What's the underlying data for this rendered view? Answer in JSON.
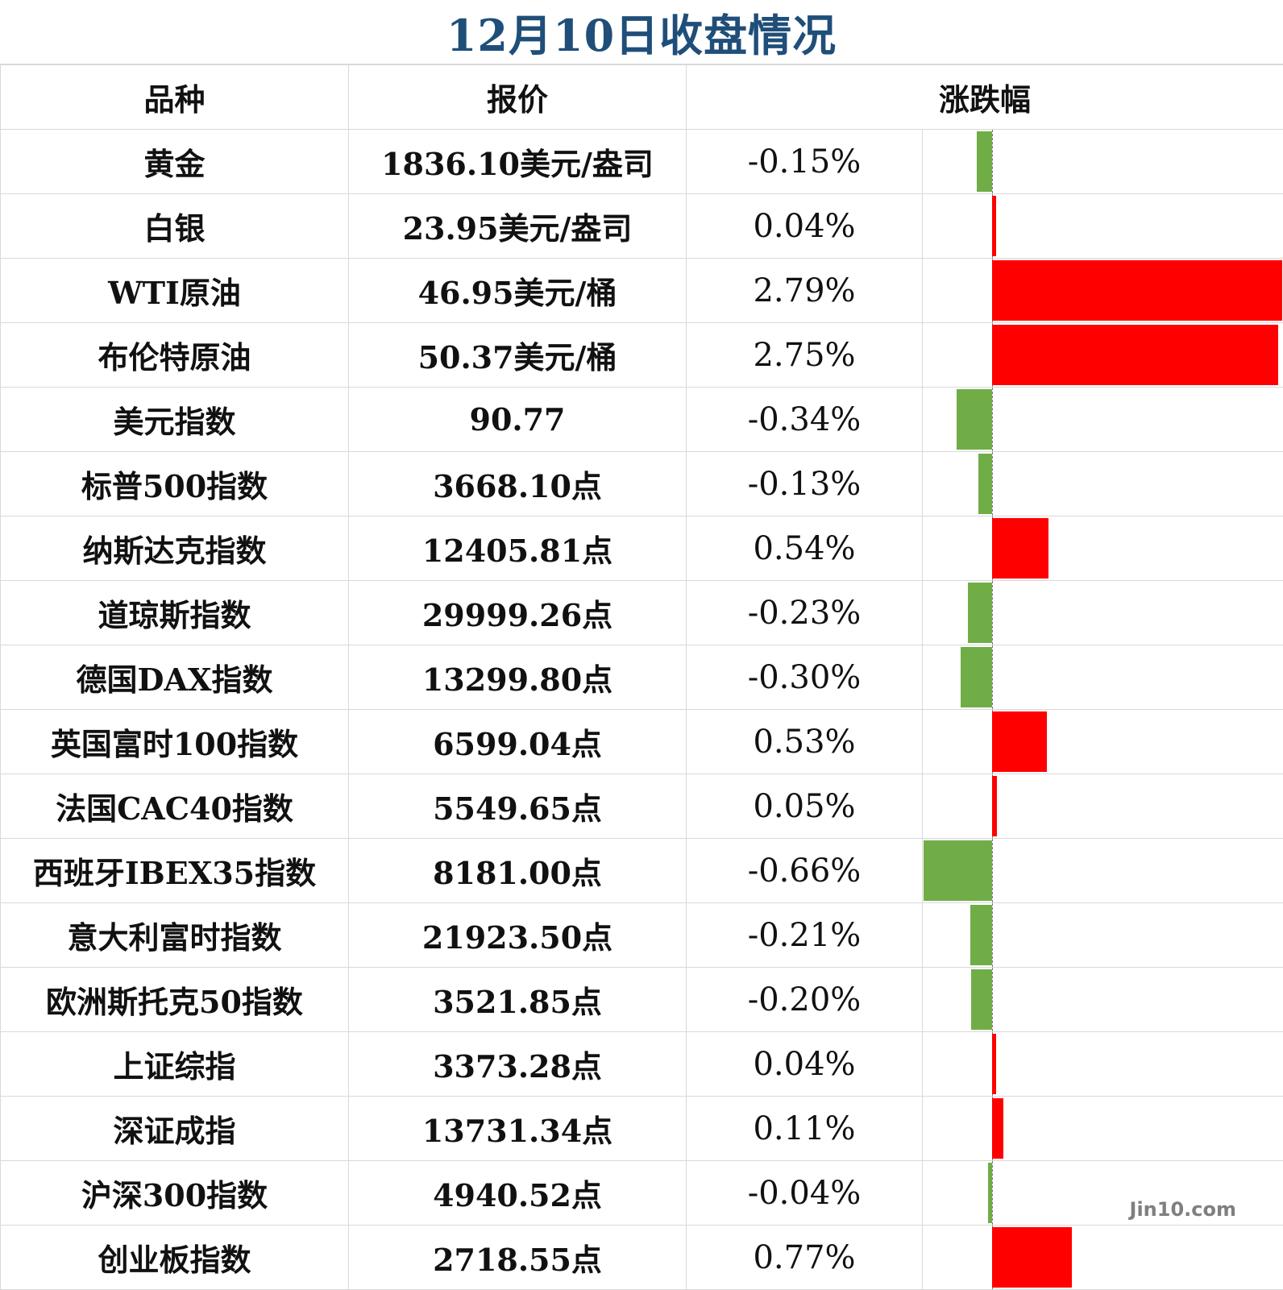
{
  "title": "12月10日收盘情况",
  "headers": {
    "variety": "品种",
    "price": "报价",
    "change": "涨跌幅"
  },
  "colors": {
    "up": "#ff0000",
    "down": "#70ad47",
    "title": "#1f4e79"
  },
  "watermark": "Jin10.com",
  "rows": [
    {
      "name": "黄金",
      "price": "1836.10美元/盎司",
      "change_text": "-0.15%",
      "change": -0.15
    },
    {
      "name": "白银",
      "price": "23.95美元/盎司",
      "change_text": "0.04%",
      "change": 0.04
    },
    {
      "name": "WTI原油",
      "price": "46.95美元/桶",
      "change_text": "2.79%",
      "change": 2.79
    },
    {
      "name": "布伦特原油",
      "price": "50.37美元/桶",
      "change_text": "2.75%",
      "change": 2.75
    },
    {
      "name": "美元指数",
      "price": "90.77",
      "change_text": "-0.34%",
      "change": -0.34
    },
    {
      "name": "标普500指数",
      "price": "3668.10点",
      "change_text": "-0.13%",
      "change": -0.13
    },
    {
      "name": "纳斯达克指数",
      "price": "12405.81点",
      "change_text": "0.54%",
      "change": 0.54
    },
    {
      "name": "道琼斯指数",
      "price": "29999.26点",
      "change_text": "-0.23%",
      "change": -0.23
    },
    {
      "name": "德国DAX指数",
      "price": "13299.80点",
      "change_text": "-0.30%",
      "change": -0.3
    },
    {
      "name": "英国富时100指数",
      "price": "6599.04点",
      "change_text": "0.53%",
      "change": 0.53
    },
    {
      "name": "法国CAC40指数",
      "price": "5549.65点",
      "change_text": "0.05%",
      "change": 0.05
    },
    {
      "name": "西班牙IBEX35指数",
      "price": "8181.00点",
      "change_text": "-0.66%",
      "change": -0.66
    },
    {
      "name": "意大利富时指数",
      "price": "21923.50点",
      "change_text": "-0.21%",
      "change": -0.21
    },
    {
      "name": "欧洲斯托克50指数",
      "price": "3521.85点",
      "change_text": "-0.20%",
      "change": -0.2
    },
    {
      "name": "上证综指",
      "price": "3373.28点",
      "change_text": "0.04%",
      "change": 0.04
    },
    {
      "name": "深证成指",
      "price": "13731.34点",
      "change_text": "0.11%",
      "change": 0.11
    },
    {
      "name": "沪深300指数",
      "price": "4940.52点",
      "change_text": "-0.04%",
      "change": -0.04
    },
    {
      "name": "创业板指数",
      "price": "2718.55点",
      "change_text": "0.77%",
      "change": 0.77
    }
  ]
}
